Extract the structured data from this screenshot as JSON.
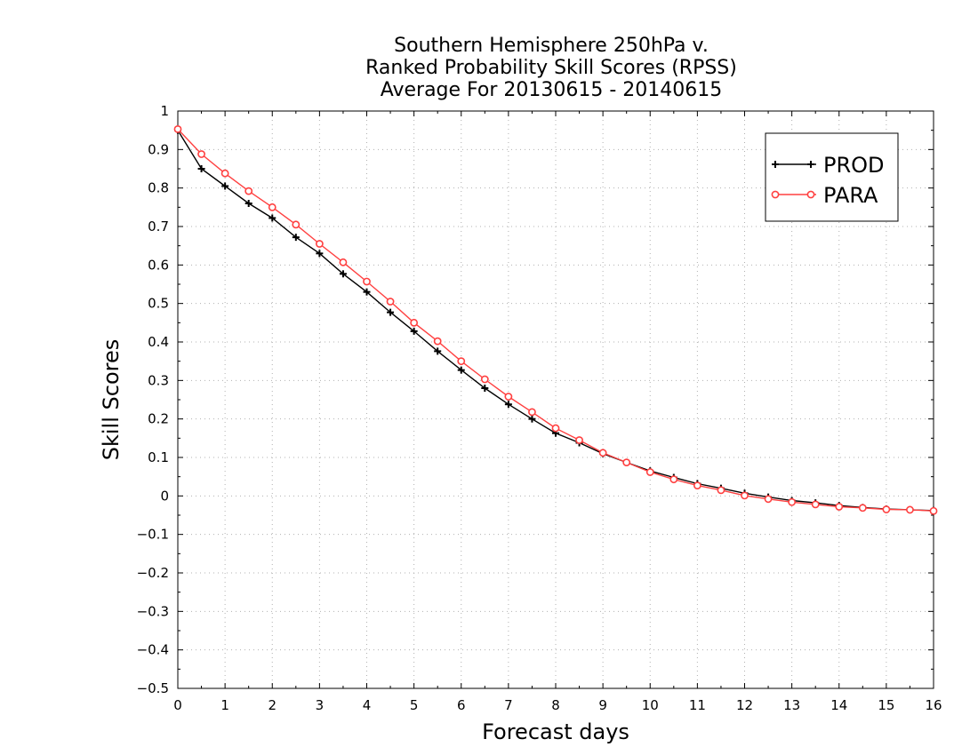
{
  "chart_data": {
    "type": "line",
    "title_lines": [
      "Southern Hemisphere 250hPa v.",
      "Ranked Probability Skill Scores (RPSS)",
      "Average For 20130615 - 20140615"
    ],
    "xlabel": "Forecast days",
    "ylabel": "Skill Scores",
    "xlim": [
      0,
      16
    ],
    "ylim": [
      -0.5,
      1
    ],
    "x_ticks": [
      "0",
      "1",
      "2",
      "3",
      "4",
      "5",
      "6",
      "7",
      "8",
      "9",
      "10",
      "11",
      "12",
      "13",
      "14",
      "15",
      "16"
    ],
    "y_ticks": [
      "1",
      "0.9",
      "0.8",
      "0.7",
      "0.6",
      "0.5",
      "0.4",
      "0.3",
      "0.2",
      "0.1",
      "0",
      "-0.1",
      "-0.2",
      "-0.3",
      "-0.4",
      "-0.5"
    ],
    "grid": true,
    "legend_position": "top-right",
    "x": [
      0,
      0.5,
      1,
      1.5,
      2,
      2.5,
      3,
      3.5,
      4,
      4.5,
      5,
      5.5,
      6,
      6.5,
      7,
      7.5,
      8,
      8.5,
      9,
      9.5,
      10,
      10.5,
      11,
      11.5,
      12,
      12.5,
      13,
      13.5,
      14,
      14.5,
      15,
      15.5,
      16
    ],
    "series": [
      {
        "name": "PROD",
        "color": "#000000",
        "marker": "plus",
        "values": [
          0.95,
          0.85,
          0.805,
          0.76,
          0.722,
          0.672,
          0.63,
          0.577,
          0.53,
          0.477,
          0.428,
          0.376,
          0.327,
          0.28,
          0.238,
          0.2,
          0.163,
          0.138,
          0.11,
          0.087,
          0.065,
          0.048,
          0.032,
          0.02,
          0.007,
          -0.003,
          -0.012,
          -0.018,
          -0.025,
          -0.03,
          -0.034,
          -0.036,
          -0.038
        ]
      },
      {
        "name": "PARA",
        "color": "#ff4040",
        "marker": "circle",
        "values": [
          0.953,
          0.888,
          0.838,
          0.792,
          0.75,
          0.705,
          0.655,
          0.607,
          0.557,
          0.505,
          0.45,
          0.402,
          0.35,
          0.303,
          0.258,
          0.218,
          0.176,
          0.145,
          0.112,
          0.087,
          0.062,
          0.043,
          0.027,
          0.015,
          0.001,
          -0.008,
          -0.016,
          -0.022,
          -0.028,
          -0.031,
          -0.035,
          -0.036,
          -0.039
        ]
      }
    ]
  }
}
